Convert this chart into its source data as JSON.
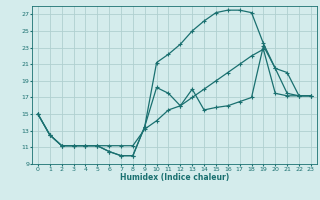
{
  "xlabel": "Humidex (Indice chaleur)",
  "bg_color": "#d4ecec",
  "grid_color": "#b0d0d0",
  "line_color": "#1a7070",
  "xlim": [
    -0.5,
    23.5
  ],
  "ylim": [
    9,
    28
  ],
  "yticks": [
    9,
    11,
    13,
    15,
    17,
    19,
    21,
    23,
    25,
    27
  ],
  "xticks": [
    0,
    1,
    2,
    3,
    4,
    5,
    6,
    7,
    8,
    9,
    10,
    11,
    12,
    13,
    14,
    15,
    16,
    17,
    18,
    19,
    20,
    21,
    22,
    23
  ],
  "line1_x": [
    0,
    1,
    2,
    3,
    4,
    5,
    6,
    7,
    8,
    9,
    10,
    11,
    12,
    13,
    14,
    15,
    16,
    17,
    18,
    19,
    20,
    21,
    22,
    23
  ],
  "line1_y": [
    15,
    12.5,
    11.2,
    11.2,
    11.2,
    11.2,
    11.2,
    11.2,
    11.2,
    13.2,
    14.2,
    15.5,
    16.0,
    17.0,
    18.0,
    19.0,
    20.0,
    21.0,
    22.0,
    22.8,
    17.5,
    17.2,
    17.2,
    17.2
  ],
  "line2_x": [
    0,
    1,
    2,
    3,
    4,
    5,
    6,
    7,
    8,
    9,
    10,
    11,
    12,
    13,
    14,
    15,
    16,
    17,
    18,
    19,
    20,
    21,
    22,
    23
  ],
  "line2_y": [
    15,
    12.5,
    11.2,
    11.2,
    11.2,
    11.2,
    10.5,
    10.0,
    10.0,
    13.5,
    21.2,
    22.2,
    23.4,
    25.0,
    26.2,
    27.2,
    27.5,
    27.5,
    27.2,
    23.5,
    20.5,
    20.0,
    17.2,
    17.2
  ],
  "line3_x": [
    0,
    1,
    2,
    3,
    4,
    5,
    6,
    7,
    8,
    9,
    10,
    11,
    12,
    13,
    14,
    15,
    16,
    17,
    18,
    19,
    20,
    21,
    22,
    23
  ],
  "line3_y": [
    15,
    12.5,
    11.2,
    11.2,
    11.2,
    11.2,
    10.5,
    10.0,
    10.0,
    13.5,
    18.2,
    17.5,
    16.0,
    18.0,
    15.5,
    15.8,
    16.0,
    16.5,
    17.0,
    23.2,
    20.5,
    17.5,
    17.2,
    17.2
  ],
  "marker": "+",
  "markersize": 3.5,
  "linewidth": 0.9
}
